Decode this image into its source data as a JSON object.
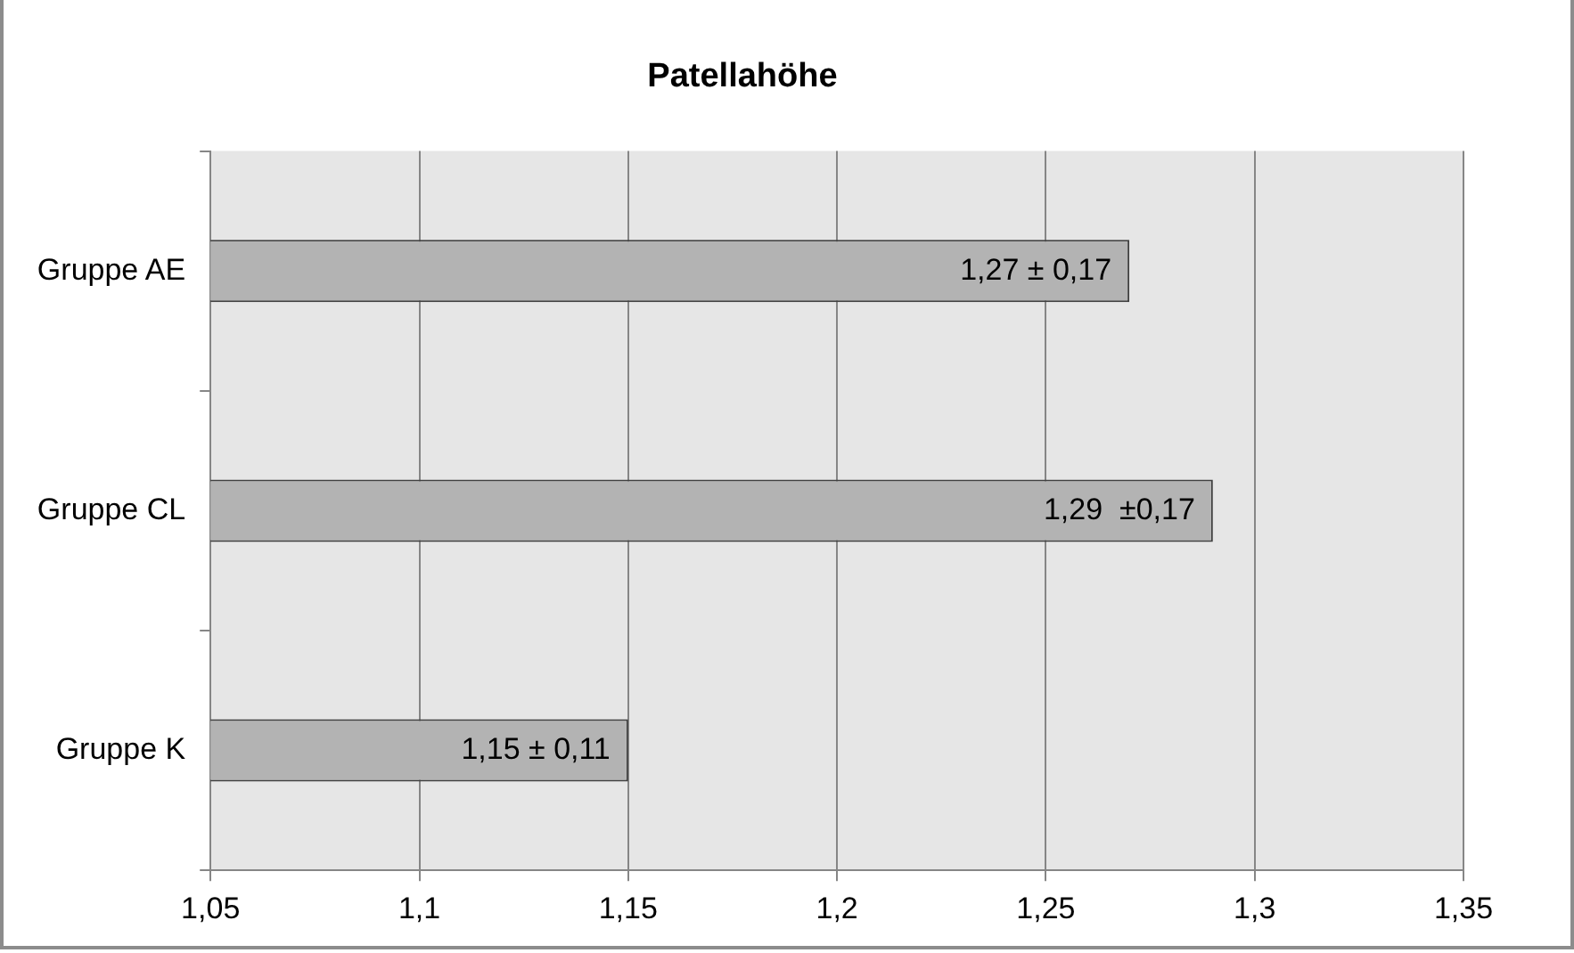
{
  "chart_data": {
    "type": "bar",
    "orientation": "horizontal",
    "title": "Patellahöhe",
    "categories": [
      "Gruppe AE",
      "Gruppe CL",
      "Gruppe K"
    ],
    "values": [
      1.27,
      1.29,
      1.15
    ],
    "value_labels": [
      "1,27 ± 0,17",
      "1,29  ±0,17",
      "1,15 ± 0,11"
    ],
    "color": "#b3b3b3",
    "xlim": [
      1.05,
      1.35
    ],
    "xticks": [
      {
        "value": 1.05,
        "label": "1,05"
      },
      {
        "value": 1.1,
        "label": "1,1"
      },
      {
        "value": 1.15,
        "label": "1,15"
      },
      {
        "value": 1.2,
        "label": "1,2"
      },
      {
        "value": 1.25,
        "label": "1,25"
      },
      {
        "value": 1.3,
        "label": "1,3"
      },
      {
        "value": 1.35,
        "label": "1,35"
      }
    ],
    "grid": "x"
  }
}
